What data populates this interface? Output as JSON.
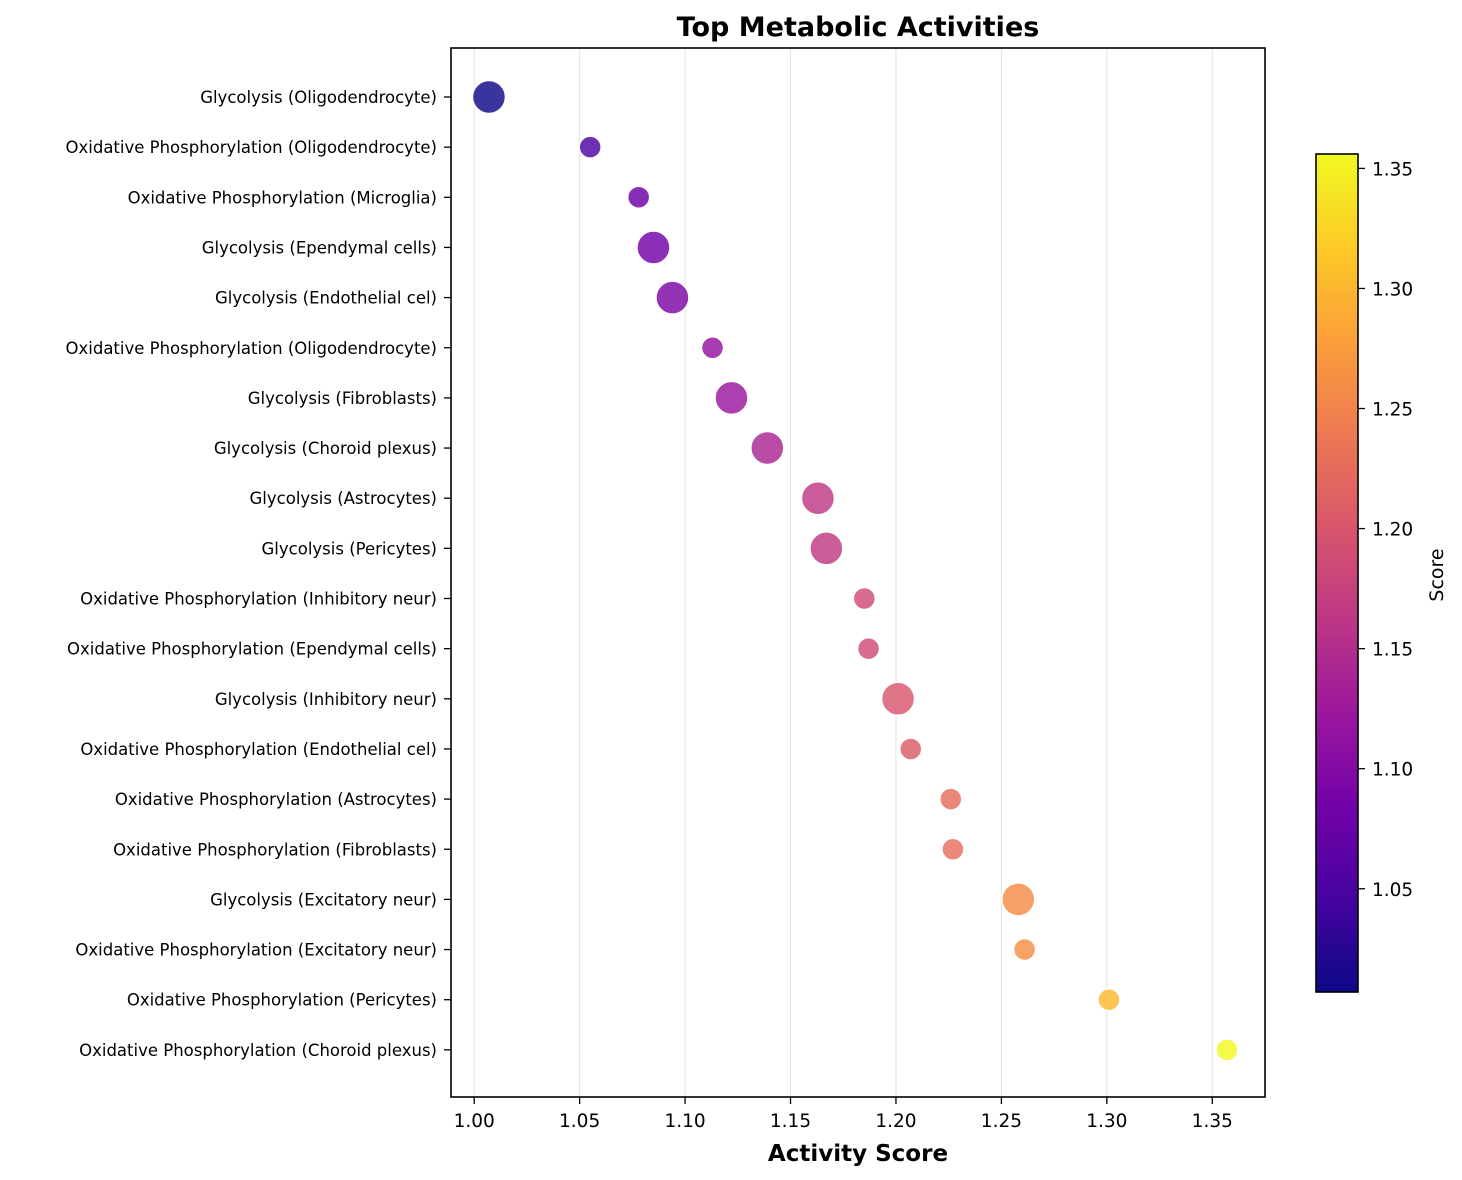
{
  "chart_data": {
    "type": "scatter",
    "title": "Top Metabolic Activities",
    "xlabel": "Activity Score",
    "ylabel": "",
    "xlim": [
      0.989,
      1.375
    ],
    "xticks": [
      "1.00",
      "1.05",
      "1.10",
      "1.15",
      "1.20",
      "1.25",
      "1.30",
      "1.35"
    ],
    "grid": "vertical",
    "colormap": "plasma",
    "colorbar": {
      "label": "Score",
      "range": [
        1.007,
        1.356
      ],
      "ticks": [
        "1.05",
        "1.10",
        "1.15",
        "1.20",
        "1.25",
        "1.30",
        "1.35"
      ]
    },
    "points": [
      {
        "label": "Glycolysis (Oligodendrocyte)",
        "x": 1.007,
        "size": "large"
      },
      {
        "label": "Oxidative Phosphorylation (Oligodendrocyte)",
        "x": 1.055,
        "size": "small"
      },
      {
        "label": "Oxidative Phosphorylation (Microglia)",
        "x": 1.078,
        "size": "small"
      },
      {
        "label": "Glycolysis (Ependymal cells)",
        "x": 1.085,
        "size": "large"
      },
      {
        "label": "Glycolysis (Endothelial cel)",
        "x": 1.094,
        "size": "large"
      },
      {
        "label": "Oxidative Phosphorylation (Oligodendrocyte)",
        "x": 1.113,
        "size": "small"
      },
      {
        "label": "Glycolysis (Fibroblasts)",
        "x": 1.122,
        "size": "large"
      },
      {
        "label": "Glycolysis (Choroid plexus)",
        "x": 1.139,
        "size": "large"
      },
      {
        "label": "Glycolysis (Astrocytes)",
        "x": 1.163,
        "size": "large"
      },
      {
        "label": "Glycolysis (Pericytes)",
        "x": 1.167,
        "size": "large"
      },
      {
        "label": "Oxidative Phosphorylation (Inhibitory neur)",
        "x": 1.185,
        "size": "small"
      },
      {
        "label": "Oxidative Phosphorylation (Ependymal cells)",
        "x": 1.187,
        "size": "small"
      },
      {
        "label": "Glycolysis (Inhibitory neur)",
        "x": 1.201,
        "size": "large"
      },
      {
        "label": "Oxidative Phosphorylation (Endothelial cel)",
        "x": 1.207,
        "size": "small"
      },
      {
        "label": "Oxidative Phosphorylation (Astrocytes)",
        "x": 1.226,
        "size": "small"
      },
      {
        "label": "Oxidative Phosphorylation (Fibroblasts)",
        "x": 1.227,
        "size": "small"
      },
      {
        "label": "Glycolysis (Excitatory neur)",
        "x": 1.258,
        "size": "large"
      },
      {
        "label": "Oxidative Phosphorylation (Excitatory neur)",
        "x": 1.261,
        "size": "small"
      },
      {
        "label": "Oxidative Phosphorylation (Pericytes)",
        "x": 1.301,
        "size": "small"
      },
      {
        "label": "Oxidative Phosphorylation (Choroid plexus)",
        "x": 1.357,
        "size": "small"
      }
    ]
  }
}
